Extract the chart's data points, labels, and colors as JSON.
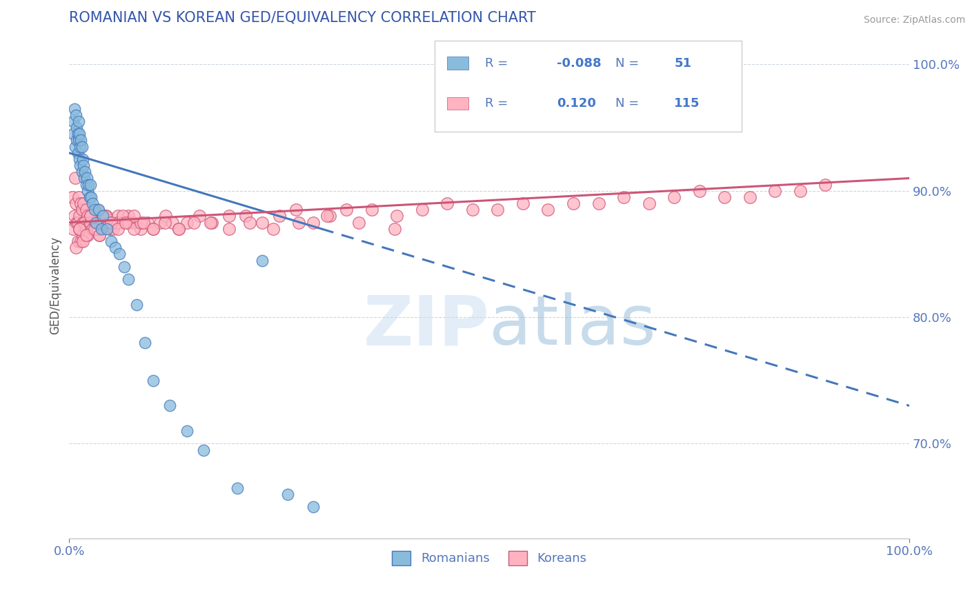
{
  "title": "ROMANIAN VS KOREAN GED/EQUIVALENCY CORRELATION CHART",
  "source": "Source: ZipAtlas.com",
  "ylabel": "GED/Equivalency",
  "xlim": [
    0.0,
    1.0
  ],
  "ylim": [
    0.625,
    1.025
  ],
  "yticks": [
    0.7,
    0.8,
    0.9,
    1.0
  ],
  "ytick_labels": [
    "70.0%",
    "80.0%",
    "90.0%",
    "100.0%"
  ],
  "xticks": [
    0.0,
    1.0
  ],
  "xtick_labels": [
    "0.0%",
    "100.0%"
  ],
  "legend_R1": "-0.088",
  "legend_N1": "51",
  "legend_R2": "0.120",
  "legend_N2": "115",
  "color_blue": "#89BBDD",
  "color_pink": "#FFB3C1",
  "color_blue_line": "#4477BB",
  "color_pink_line": "#CC5577",
  "color_title": "#3355AA",
  "color_axis": "#5577BB",
  "color_legend_values": "#4477CC",
  "watermark_color": "#C8DDF0",
  "watermark_alpha": 0.5,
  "rom_trend_start_y": 0.93,
  "rom_trend_end_y": 0.865,
  "rom_trend_x_end": 0.3,
  "kor_trend_start_y": 0.875,
  "kor_trend_end_y": 0.91
}
